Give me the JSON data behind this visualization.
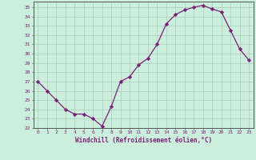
{
  "x": [
    0,
    1,
    2,
    3,
    4,
    5,
    6,
    7,
    8,
    9,
    10,
    11,
    12,
    13,
    14,
    15,
    16,
    17,
    18,
    19,
    20,
    21,
    22,
    23
  ],
  "y": [
    27,
    26,
    25,
    24,
    23.5,
    23.5,
    23,
    22.2,
    24.3,
    27,
    27.5,
    28.8,
    29.5,
    31,
    33.2,
    34.2,
    34.7,
    35,
    35.2,
    34.8,
    34.5,
    32.5,
    30.5,
    29.3
  ],
  "line_color": "#772277",
  "marker": "D",
  "marker_size": 2.2,
  "bg_color": "#cceedd",
  "grid_color": "#aaccbb",
  "xlabel": "Windchill (Refroidissement éolien,°C)",
  "xlim": [
    -0.5,
    23.5
  ],
  "ylim": [
    22,
    35.6
  ],
  "yticks": [
    22,
    23,
    24,
    25,
    26,
    27,
    28,
    29,
    30,
    31,
    32,
    33,
    34,
    35
  ],
  "xticks": [
    0,
    1,
    2,
    3,
    4,
    5,
    6,
    7,
    8,
    9,
    10,
    11,
    12,
    13,
    14,
    15,
    16,
    17,
    18,
    19,
    20,
    21,
    22,
    23
  ],
  "tick_label_color": "#772277",
  "spine_color": "#555555"
}
